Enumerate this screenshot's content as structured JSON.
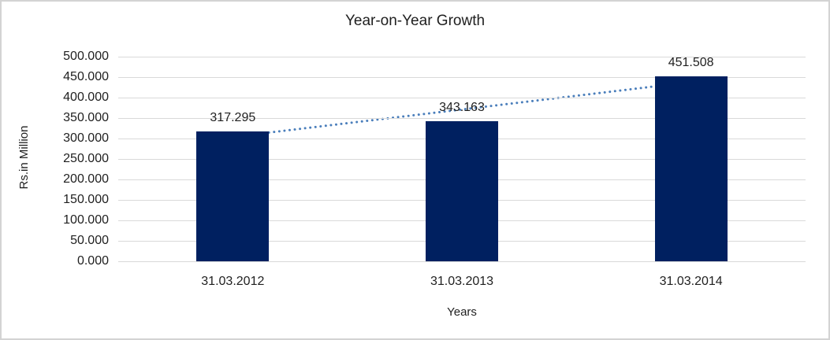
{
  "window": {
    "background": "#ffffff",
    "border_color": "#d3d3d3"
  },
  "chart_data": {
    "type": "bar",
    "title": "Year-on-Year Growth",
    "xlabel": "Years",
    "ylabel": "Rs.in Million",
    "categories": [
      "31.03.2012",
      "31.03.2013",
      "31.03.2014"
    ],
    "values": [
      317.295,
      343.163,
      451.508
    ],
    "data_labels": [
      "317.295",
      "343.163",
      "451.508"
    ],
    "ylim": [
      0,
      500
    ],
    "ytick_step": 50,
    "ytick_labels": [
      "0.000",
      "50.000",
      "100.000",
      "150.000",
      "200.000",
      "250.000",
      "300.000",
      "350.000",
      "400.000",
      "450.000",
      "500.000"
    ],
    "grid": true,
    "legend_position": "none",
    "bar_color": "#002060",
    "gridline_color": "#d9d9d9",
    "text_color": "#1f1f1f",
    "trendline": {
      "type": "linear",
      "style": "dotted",
      "color": "#4a7ebb",
      "start_value": 304,
      "end_value": 438
    }
  }
}
